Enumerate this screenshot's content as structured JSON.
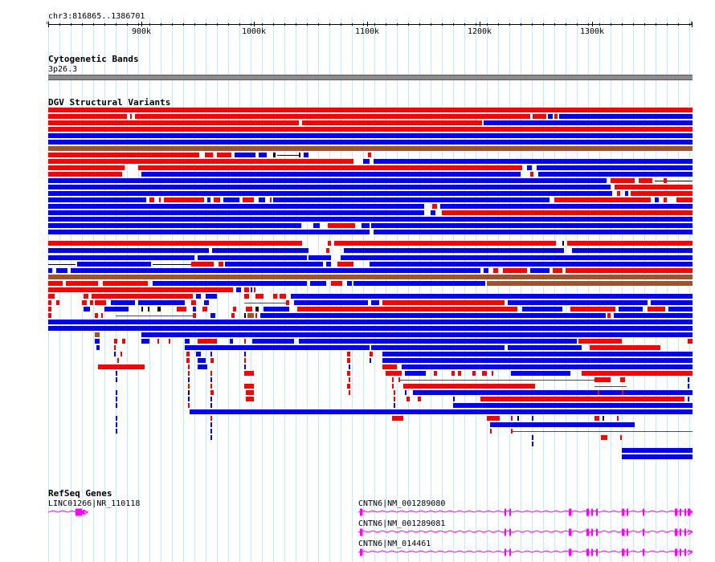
{
  "location": "chr3:816865..1386701",
  "ruler": {
    "ticks": [
      {
        "label": "900k",
        "x": 176
      },
      {
        "label": "1000k",
        "x": 316
      },
      {
        "label": "1100k",
        "x": 457
      },
      {
        "label": "1200k",
        "x": 597
      },
      {
        "label": "1300k",
        "x": 737
      }
    ]
  },
  "tracks": {
    "cytobands": {
      "title": "Cytogenetic Bands",
      "band": "3p26.3"
    },
    "dgv": {
      "title": "DGV Structural Variants"
    },
    "refseq": {
      "title": "RefSeq Genes"
    }
  },
  "genes": [
    {
      "label": "LINC01266|NR_110118",
      "strand": "+"
    },
    {
      "label": "CNTN6|NM_001289080",
      "strand": "+"
    },
    {
      "label": "CNTN6|NM_001289081",
      "strand": "+"
    },
    {
      "label": "CNTN6|NM_014461",
      "strand": "+"
    }
  ],
  "colors": {
    "loss": "#ff0000",
    "gain": "#0000ff",
    "gain_loss": "#a0522d",
    "gene": "#ff00ff",
    "band": "#8c8c8c",
    "grid": "#cde6f2"
  }
}
